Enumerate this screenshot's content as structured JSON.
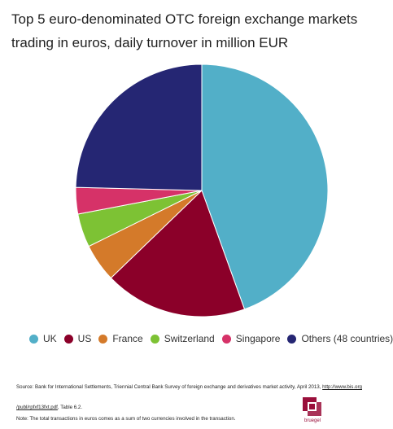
{
  "chart_data": {
    "type": "pie",
    "title": "Top 5 euro-denominated OTC foreign exchange markets trading in euros, daily turnover in million EUR",
    "slices": [
      {
        "label": "UK",
        "value": 44.5,
        "color": "#52afc8"
      },
      {
        "label": "US",
        "value": 18.3,
        "color": "#8b0029"
      },
      {
        "label": "France",
        "value": 4.9,
        "color": "#d47a2a"
      },
      {
        "label": "Switzerland",
        "value": 4.3,
        "color": "#7dc234"
      },
      {
        "label": "Singapore",
        "value": 3.4,
        "color": "#d63268"
      },
      {
        "label": "Others (48 countries)",
        "value": 24.6,
        "color": "#252673"
      }
    ],
    "legend_position": "bottom"
  },
  "source": {
    "text": "Source: Bank for International Settlements, Triennial Central Bank Survey of foreign exchange and derivatives market activity, April 2013, ",
    "link_part1": "http://www.bis.org",
    "link_part2": "/publ/rpfxf13fxt.pdf",
    "suffix": ", Table 6.2."
  },
  "note": "Note: The total transactions in euros comes as a sum of two currencies involved in the transaction.",
  "logo": {
    "text": "bruegel",
    "color": "#9a0f3b"
  }
}
